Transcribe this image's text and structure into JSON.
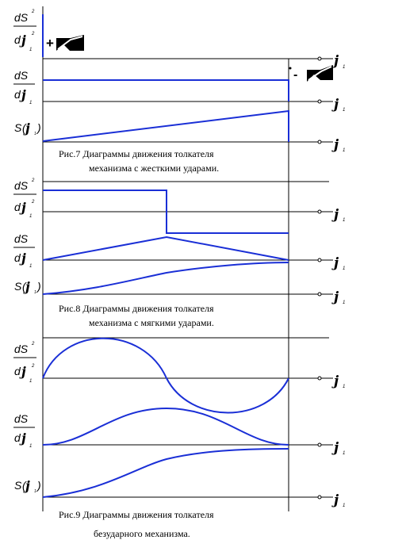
{
  "figures": [
    {
      "caption_line1": "Рис.7  Диаграммы движения толкателя",
      "caption_line2": "механизма с жесткими ударами."
    },
    {
      "caption_line1": "Рис.8  Диаграммы движения толкателя",
      "caption_line2": "механизма с мягкими ударами."
    },
    {
      "caption_line1": "Рис.9  Диаграммы движения толкателя",
      "caption_line2": "безударного механизма."
    }
  ],
  "labels": {
    "dS": "dS",
    "d": "d",
    "phi": "j",
    "sub1": "1",
    "sup2": "2",
    "S": "S",
    "paren_open": "(",
    "paren_close": ")",
    "plus": "+",
    "minus": "-"
  },
  "colors": {
    "curve": "#1a2fd6",
    "axis": "#000000"
  }
}
